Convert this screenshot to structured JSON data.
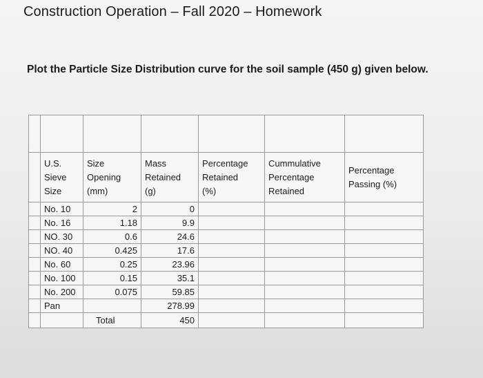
{
  "title": "Construction Operation – Fall 2020 – Homework",
  "instruction": "Plot the Particle Size Distribution curve for the soil sample (450 g) given below.",
  "table": {
    "headers": [
      [
        "U.S.",
        "Sieve",
        "Size"
      ],
      [
        "Size",
        "Opening",
        "(mm)"
      ],
      [
        "Mass",
        "Retained",
        "(g)"
      ],
      [
        "Percentage",
        "Retained",
        "(%)"
      ],
      [
        "Cummulative",
        "Percentage",
        "Retained"
      ],
      [
        "Percentage",
        "Passing (%)"
      ]
    ],
    "rows": [
      {
        "sieve": "No. 10",
        "opening": "2",
        "mass": "0"
      },
      {
        "sieve": "No. 16",
        "opening": "1.18",
        "mass": "9.9"
      },
      {
        "sieve": "NO. 30",
        "opening": "0.6",
        "mass": "24.6"
      },
      {
        "sieve": "NO. 40",
        "opening": "0.425",
        "mass": "17.6"
      },
      {
        "sieve": "No. 60",
        "opening": "0.25",
        "mass": "23.96"
      },
      {
        "sieve": "No. 100",
        "opening": "0.15",
        "mass": "35.1"
      },
      {
        "sieve": "No. 200",
        "opening": "0.075",
        "mass": "59.85"
      },
      {
        "sieve": "Pan",
        "opening": "",
        "mass": "278.99"
      }
    ],
    "total": {
      "label": "Total",
      "mass": "450"
    }
  }
}
